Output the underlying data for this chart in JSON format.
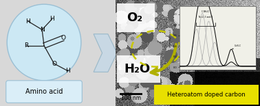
{
  "bg_color": "#d8d8d8",
  "oval_fill": "#cce8f4",
  "oval_edge": "#9abfd4",
  "amino_acid_label": "Amino acid",
  "label_box_fill": "#daeef8",
  "label_box_edge": "#9abfd4",
  "arrow_fill": "#c8d8e4",
  "arrow_edge": "#9ab8c8",
  "o2_label": "O₂",
  "h2o_label": "H₂O",
  "scale_bar_label": "100 nm",
  "heteroatom_label": "Heteroatom doped carbon",
  "heteroatom_bg": "#e8e000",
  "dashed_circle_color": "#c8c800",
  "curved_arrow_color": "#b0b000",
  "inset_bg": "#f0f0e8",
  "tem_light": "#b8b8b8",
  "tem_dark": "#202020"
}
